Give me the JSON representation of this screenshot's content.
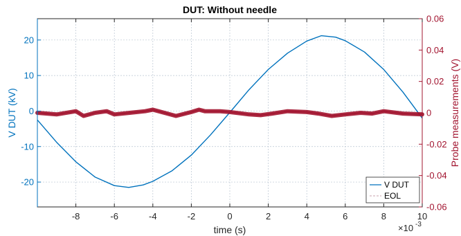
{
  "chart_data": {
    "type": "line",
    "title": "DUT: Without needle",
    "xlabel": "time (s)",
    "x_exponent_label": "×10",
    "x_exponent_power": "-3",
    "xlim": [
      -10,
      10
    ],
    "x_ticks": [
      -8,
      -6,
      -4,
      -2,
      0,
      2,
      4,
      6,
      8,
      10
    ],
    "x_tick_labels": [
      "-8",
      "-6",
      "-4",
      "-2",
      "0",
      "2",
      "4",
      "6",
      "8",
      "10"
    ],
    "x_unit_note": "x values are in units of 1e-3 s",
    "ylabel_left": "V DUT (kV)",
    "ylim_left": [
      -27,
      26
    ],
    "y_ticks_left": [
      -20,
      -10,
      0,
      10,
      20
    ],
    "y_tick_labels_left": [
      "-20",
      "-10",
      "0",
      "10",
      "20"
    ],
    "ylabel_right": "Probe measurements (V)",
    "ylim_right": [
      -0.06,
      0.06
    ],
    "y_ticks_right": [
      -0.06,
      -0.04,
      -0.02,
      0,
      0.02,
      0.04,
      0.06
    ],
    "y_tick_labels_right": [
      "-0.06",
      "-0.04",
      "-0.02",
      "0",
      "0.02",
      "0.04",
      "0.06"
    ],
    "grid": true,
    "legend_position": "bottom-right",
    "series": [
      {
        "name": "V DUT",
        "axis": "left",
        "color": "#0072BD",
        "x": [
          -10,
          -9,
          -8,
          -7,
          -6,
          -5.25,
          -4.5,
          -4,
          -3,
          -2,
          -1,
          0,
          1,
          2,
          3,
          4,
          4.75,
          5.5,
          6,
          7,
          8,
          9,
          10
        ],
        "y": [
          -2.5,
          -8.8,
          -14.3,
          -18.6,
          -21.0,
          -21.5,
          -20.8,
          -19.8,
          -16.8,
          -12.4,
          -6.7,
          -0.4,
          6.0,
          11.7,
          16.3,
          19.7,
          21.2,
          20.8,
          19.8,
          16.6,
          11.7,
          5.3,
          -2.0
        ]
      },
      {
        "name": "EOL",
        "axis": "right",
        "color": "#A2142F",
        "x": [
          -10,
          -9,
          -8,
          -7.6,
          -7,
          -6.4,
          -6,
          -5.2,
          -4.4,
          -4,
          -3.4,
          -2.8,
          -2,
          -1.6,
          -1.3,
          -0.5,
          0,
          1,
          1.6,
          2.2,
          3,
          4,
          4.6,
          5.3,
          6,
          6.8,
          7.4,
          8,
          9,
          10
        ],
        "y": [
          0,
          -0.001,
          0.001,
          -0.002,
          0,
          0.001,
          -0.001,
          0,
          0.001,
          0.002,
          0,
          -0.002,
          0.0005,
          0.002,
          0.001,
          0.001,
          0.0005,
          -0.001,
          -0.0015,
          -0.0005,
          0.001,
          0.0005,
          -0.0005,
          -0.002,
          -0.001,
          0,
          -0.0005,
          0.001,
          -0.0005,
          -0.001
        ]
      }
    ],
    "legend_entries": [
      "V DUT",
      "EOL"
    ]
  }
}
